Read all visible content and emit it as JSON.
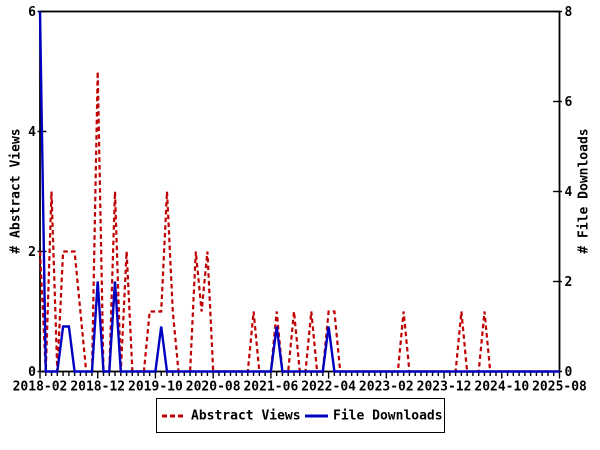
{
  "chart": {
    "y_left_title": "# Abstract Views",
    "y_right_title": "# File Downloads"
  },
  "legend": {
    "abstract_views_label": "Abstract Views",
    "file_downloads_label": "File Downloads"
  },
  "colors": {
    "abstract_views": "#c00000",
    "file_downloads": "#0000c0",
    "frame": "#000000",
    "background": "#ffffff"
  },
  "chart_data": {
    "type": "line",
    "title": "",
    "x_start": "2018-02",
    "x_end": "2025-08",
    "x_frequency": "monthly",
    "x_tick_labels": [
      "2018-02",
      "2018-12",
      "2019-10",
      "2020-08",
      "2021-06",
      "2022-04",
      "2023-02",
      "2023-12",
      "2024-10",
      "2025-08"
    ],
    "x_tick_label_interval_months": 10,
    "grid": false,
    "legend_position": "bottom-center",
    "y_left": {
      "label": "# Abstract Views",
      "min": 0,
      "max": 6,
      "ticks": [
        0,
        2,
        4,
        6
      ]
    },
    "y_right": {
      "label": "# File Downloads",
      "min": 0,
      "max": 8,
      "ticks": [
        0,
        2,
        4,
        6,
        8
      ]
    },
    "series": [
      {
        "name": "Abstract Views",
        "axis": "left",
        "color": "#c00000",
        "style": "dashed",
        "values": [
          2,
          0,
          3,
          0,
          2,
          2,
          2,
          1,
          0,
          0,
          5,
          0,
          0,
          3,
          0,
          2,
          0,
          0,
          0,
          1,
          1,
          1,
          3,
          1,
          0,
          0,
          0,
          2,
          1,
          2,
          0,
          0,
          0,
          0,
          0,
          0,
          0,
          1,
          0,
          0,
          0,
          1,
          0,
          0,
          1,
          0,
          0,
          1,
          0,
          0,
          1,
          1,
          0,
          0,
          0,
          0,
          0,
          0,
          0,
          0,
          0,
          0,
          0,
          1,
          0,
          0,
          0,
          0,
          0,
          0,
          0,
          0,
          0,
          1,
          0,
          0,
          0,
          1,
          0,
          0,
          0,
          0,
          0,
          0,
          0,
          0,
          0,
          0,
          0,
          0,
          0
        ]
      },
      {
        "name": "File Downloads",
        "axis": "right",
        "color": "#0000c0",
        "style": "solid",
        "values": [
          8,
          0,
          0,
          0,
          1,
          1,
          0,
          0,
          0,
          0,
          2,
          0,
          0,
          2,
          0,
          0,
          0,
          0,
          0,
          0,
          0,
          1,
          0,
          0,
          0,
          0,
          0,
          0,
          0,
          0,
          0,
          0,
          0,
          0,
          0,
          0,
          0,
          0,
          0,
          0,
          0,
          1,
          0,
          0,
          0,
          0,
          0,
          0,
          0,
          0,
          1,
          0,
          0,
          0,
          0,
          0,
          0,
          0,
          0,
          0,
          0,
          0,
          0,
          0,
          0,
          0,
          0,
          0,
          0,
          0,
          0,
          0,
          0,
          0,
          0,
          0,
          0,
          0,
          0,
          0,
          0,
          0,
          0,
          0,
          0,
          0,
          0,
          0,
          0,
          0,
          0
        ]
      }
    ]
  }
}
